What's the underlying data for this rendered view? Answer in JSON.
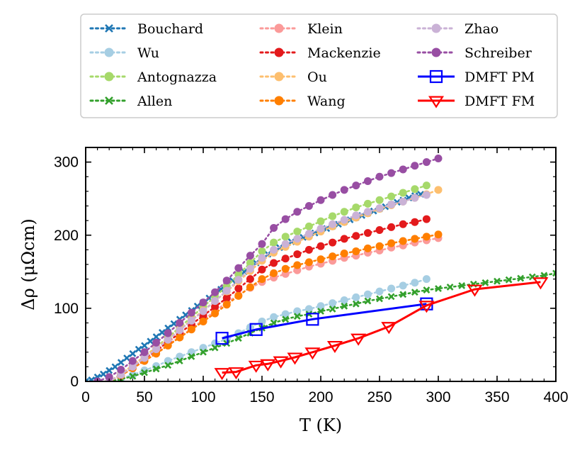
{
  "chart_data": {
    "type": "scatter",
    "title": "",
    "xlabel": "T (K)",
    "ylabel": "Δρ (μΩcm)",
    "xlim": [
      0,
      400
    ],
    "ylim": [
      0,
      320
    ],
    "xticks": [
      0,
      50,
      100,
      150,
      200,
      250,
      300,
      350,
      400
    ],
    "yticks": [
      0,
      100,
      200,
      300
    ],
    "legend_position": "top (above plot, 3 columns)",
    "series": [
      {
        "name": "Bouchard",
        "color": "#1f77b4",
        "marker": "x",
        "line": "dotted",
        "x": [
          0,
          5,
          10,
          15,
          20,
          25,
          30,
          35,
          40,
          45,
          50,
          55,
          60,
          65,
          70,
          75,
          80,
          85,
          90,
          95,
          100,
          105,
          110,
          115,
          120,
          125,
          130,
          135,
          140,
          145,
          150,
          155,
          160,
          165,
          170,
          175,
          180,
          185,
          190,
          195,
          200,
          205,
          210,
          215,
          220,
          225,
          230,
          235,
          240,
          245,
          250,
          255,
          260,
          265,
          270,
          275,
          280,
          285
        ],
        "y": [
          0,
          2,
          6,
          10,
          15,
          20,
          26,
          32,
          38,
          44,
          49,
          55,
          61,
          67,
          73,
          79,
          85,
          91,
          97,
          103,
          108,
          114,
          120,
          126,
          132,
          138,
          144,
          150,
          156,
          162,
          168,
          174,
          179,
          183,
          187,
          191,
          194,
          197,
          200,
          203,
          206,
          209,
          212,
          215,
          218,
          221,
          224,
          227,
          230,
          233,
          236,
          239,
          242,
          245,
          248,
          251,
          254,
          256
        ]
      },
      {
        "name": "Wu",
        "color": "#a6cee3",
        "marker": "o",
        "line": "dotted",
        "x": [
          20,
          30,
          40,
          50,
          60,
          70,
          80,
          90,
          100,
          110,
          120,
          130,
          140,
          150,
          160,
          170,
          180,
          190,
          200,
          210,
          220,
          230,
          240,
          250,
          260,
          270,
          280,
          290
        ],
        "y": [
          0,
          4,
          9,
          15,
          21,
          28,
          34,
          40,
          46,
          52,
          58,
          66,
          74,
          82,
          88,
          92,
          96,
          99,
          103,
          107,
          111,
          115,
          119,
          123,
          127,
          131,
          135,
          140
        ]
      },
      {
        "name": "Antognazza",
        "color": "#a6d96a",
        "marker": "o",
        "line": "dotted",
        "x": [
          20,
          30,
          40,
          50,
          60,
          70,
          80,
          90,
          100,
          110,
          120,
          130,
          140,
          150,
          160,
          170,
          180,
          190,
          200,
          210,
          220,
          230,
          240,
          250,
          260,
          270,
          280,
          290
        ],
        "y": [
          0,
          10,
          22,
          34,
          47,
          60,
          74,
          88,
          102,
          116,
          130,
          146,
          162,
          178,
          190,
          198,
          205,
          212,
          219,
          226,
          232,
          238,
          243,
          248,
          253,
          258,
          263,
          268
        ]
      },
      {
        "name": "Allen",
        "color": "#33a02c",
        "marker": "x",
        "line": "dotted",
        "x": [
          20,
          30,
          40,
          50,
          60,
          70,
          80,
          90,
          100,
          110,
          120,
          130,
          140,
          150,
          160,
          170,
          180,
          190,
          200,
          210,
          220,
          230,
          240,
          250,
          260,
          270,
          280,
          290,
          300,
          310,
          320,
          330,
          340,
          350,
          360,
          370,
          380,
          390,
          400
        ],
        "y": [
          0,
          3,
          7,
          12,
          17,
          22,
          28,
          34,
          40,
          46,
          52,
          59,
          66,
          73,
          80,
          85,
          89,
          92,
          96,
          99,
          103,
          106,
          110,
          113,
          116,
          119,
          122,
          125,
          127,
          129,
          131,
          133,
          135,
          137,
          139,
          141,
          143,
          145,
          148
        ]
      },
      {
        "name": "Klein",
        "color": "#fb9a99",
        "marker": "o",
        "line": "dotted",
        "x": [
          20,
          30,
          40,
          50,
          60,
          70,
          80,
          90,
          100,
          110,
          120,
          130,
          140,
          150,
          160,
          170,
          180,
          190,
          200,
          210,
          220,
          230,
          240,
          250,
          260,
          270,
          280,
          290,
          300
        ],
        "y": [
          0,
          8,
          18,
          28,
          39,
          50,
          61,
          72,
          84,
          96,
          108,
          118,
          128,
          136,
          142,
          147,
          152,
          157,
          161,
          165,
          169,
          172,
          176,
          179,
          183,
          186,
          190,
          193,
          196
        ]
      },
      {
        "name": "Mackenzie",
        "color": "#e31a1c",
        "marker": "o",
        "line": "dotted",
        "x": [
          20,
          30,
          40,
          50,
          60,
          70,
          80,
          90,
          100,
          110,
          120,
          130,
          140,
          150,
          160,
          170,
          180,
          190,
          200,
          210,
          220,
          230,
          240,
          250,
          260,
          270,
          280,
          290
        ],
        "y": [
          0,
          9,
          20,
          31,
          42,
          54,
          66,
          78,
          90,
          102,
          114,
          127,
          140,
          153,
          162,
          168,
          174,
          180,
          185,
          190,
          195,
          199,
          203,
          207,
          211,
          215,
          218,
          222
        ]
      },
      {
        "name": "Ou",
        "color": "#fdbf6f",
        "marker": "o",
        "line": "dotted",
        "x": [
          20,
          30,
          40,
          50,
          60,
          70,
          80,
          90,
          100,
          110,
          120,
          130,
          140,
          150,
          160,
          170,
          180,
          190,
          200,
          210,
          220,
          230,
          240,
          250,
          260,
          270,
          280,
          290,
          300
        ],
        "y": [
          0,
          10,
          22,
          34,
          46,
          58,
          71,
          84,
          97,
          110,
          123,
          137,
          151,
          165,
          176,
          184,
          191,
          198,
          205,
          212,
          218,
          224,
          230,
          236,
          241,
          246,
          251,
          256,
          262
        ]
      },
      {
        "name": "Wang",
        "color": "#ff7f00",
        "marker": "o",
        "line": "dotted",
        "x": [
          20,
          30,
          40,
          50,
          60,
          70,
          80,
          90,
          100,
          110,
          120,
          130,
          140,
          150,
          160,
          170,
          180,
          190,
          200,
          210,
          220,
          230,
          240,
          250,
          260,
          270,
          280,
          290,
          300
        ],
        "y": [
          0,
          8,
          18,
          28,
          38,
          49,
          60,
          71,
          82,
          93,
          105,
          117,
          129,
          140,
          148,
          154,
          159,
          163,
          167,
          171,
          175,
          178,
          182,
          185,
          189,
          192,
          195,
          198,
          201
        ]
      },
      {
        "name": "Zhao",
        "color": "#cab2d6",
        "marker": "o",
        "line": "dotted",
        "x": [
          20,
          30,
          40,
          50,
          60,
          70,
          80,
          90,
          100,
          110,
          120,
          130,
          140,
          150,
          160,
          170,
          180,
          190,
          200,
          210,
          220,
          230,
          240,
          250,
          260,
          270,
          280,
          290
        ],
        "y": [
          0,
          9,
          20,
          32,
          44,
          57,
          70,
          83,
          96,
          110,
          124,
          139,
          154,
          169,
          180,
          188,
          195,
          202,
          209,
          215,
          221,
          227,
          232,
          237,
          242,
          246,
          251,
          255
        ]
      },
      {
        "name": "Schreiber",
        "color": "#984ea3",
        "marker": "o",
        "line": "dotted",
        "x": [
          10,
          20,
          30,
          40,
          50,
          60,
          70,
          80,
          90,
          100,
          110,
          120,
          130,
          140,
          150,
          160,
          170,
          180,
          190,
          200,
          210,
          220,
          230,
          240,
          250,
          260,
          270,
          280,
          290,
          300
        ],
        "y": [
          0,
          6,
          16,
          28,
          40,
          53,
          66,
          80,
          94,
          108,
          122,
          138,
          155,
          172,
          188,
          210,
          222,
          232,
          240,
          248,
          255,
          262,
          268,
          274,
          280,
          285,
          290,
          295,
          300,
          305
        ]
      },
      {
        "name": "DMFT PM",
        "color": "#0000ff",
        "marker": "s",
        "line": "solid",
        "x": [
          116,
          145,
          193,
          290
        ],
        "y": [
          59,
          71,
          85,
          106
        ]
      },
      {
        "name": "DMFT FM",
        "color": "#ff0000",
        "marker": "v",
        "line": "solid",
        "x": [
          116,
          128,
          145,
          155,
          166,
          178,
          193,
          212,
          232,
          258,
          290,
          331,
          387
        ],
        "y": [
          12,
          13,
          22,
          24,
          28,
          33,
          40,
          49,
          59,
          75,
          104,
          126,
          136
        ]
      }
    ]
  }
}
